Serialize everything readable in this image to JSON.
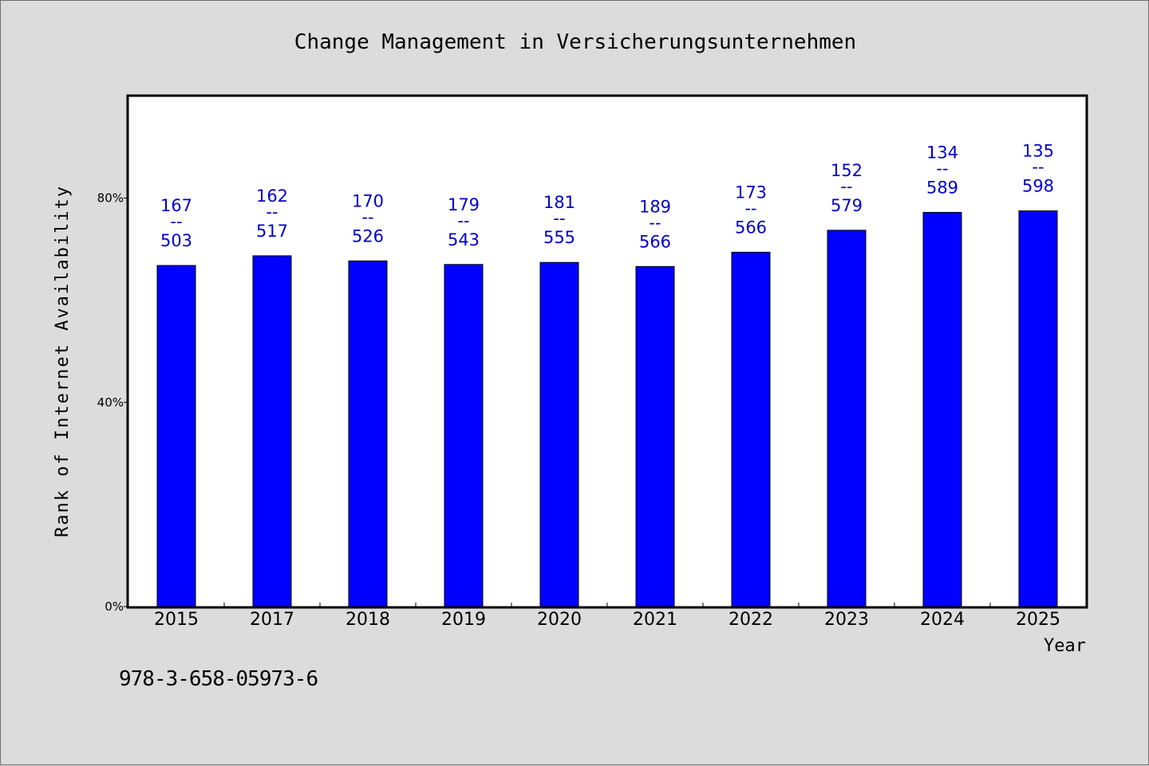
{
  "chart_data": {
    "type": "bar",
    "title": "Change Management in Versicherungsunternehmen",
    "xlabel": "Year",
    "ylabel": "Rank of Internet Availability",
    "ylim": [
      0,
      100
    ],
    "yticks": [
      0,
      40,
      80
    ],
    "ytick_labels": [
      "0%",
      "40%",
      "80%"
    ],
    "categories": [
      "2015",
      "2017",
      "2018",
      "2019",
      "2020",
      "2021",
      "2022",
      "2023",
      "2024",
      "2025"
    ],
    "values": [
      66.8,
      68.7,
      67.7,
      67.0,
      67.4,
      66.6,
      69.4,
      73.7,
      77.2,
      77.5
    ],
    "data_labels": [
      {
        "top": "167",
        "sep": "--",
        "bottom": "503"
      },
      {
        "top": "162",
        "sep": "--",
        "bottom": "517"
      },
      {
        "top": "170",
        "sep": "--",
        "bottom": "526"
      },
      {
        "top": "179",
        "sep": "--",
        "bottom": "543"
      },
      {
        "top": "181",
        "sep": "--",
        "bottom": "555"
      },
      {
        "top": "189",
        "sep": "--",
        "bottom": "566"
      },
      {
        "top": "173",
        "sep": "--",
        "bottom": "566"
      },
      {
        "top": "152",
        "sep": "--",
        "bottom": "579"
      },
      {
        "top": "134",
        "sep": "--",
        "bottom": "589"
      },
      {
        "top": "135",
        "sep": "--",
        "bottom": "598"
      }
    ],
    "bar_color": "#0000ff",
    "label_color": "#0000cc",
    "grid": false,
    "legend": "none"
  },
  "footer": {
    "isbn": "978-3-658-05973-6"
  }
}
